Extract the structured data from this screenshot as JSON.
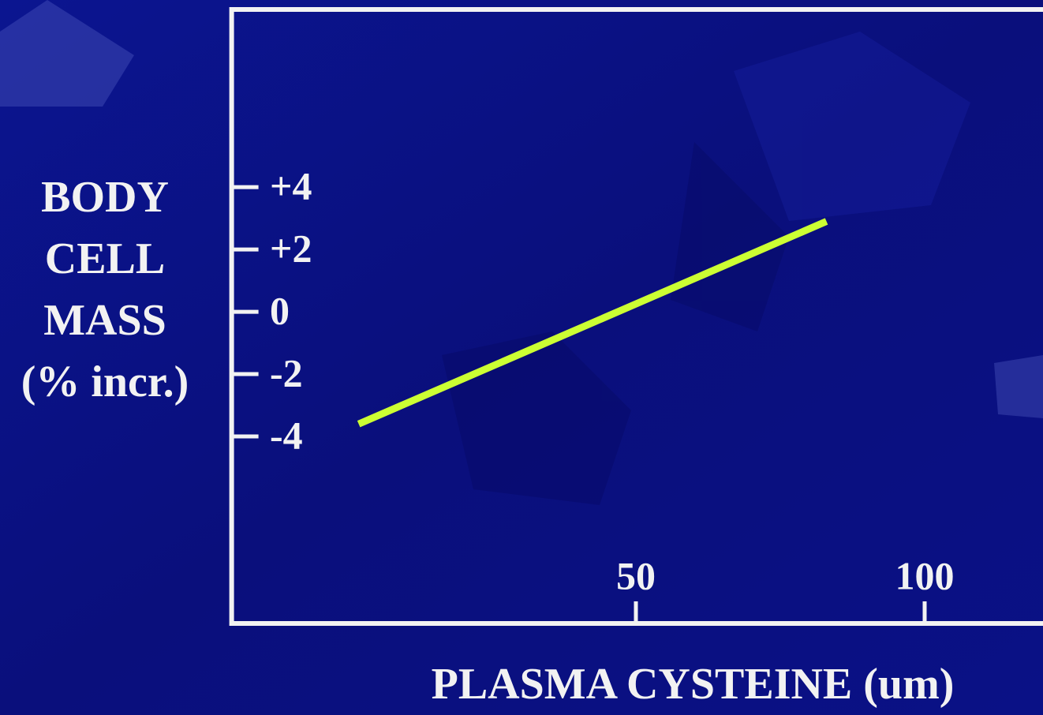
{
  "chart_data": {
    "type": "line",
    "x_label": "PLASMA CYSTEINE (um)",
    "y_label": [
      "BODY",
      "CELL",
      "MASS",
      "(% incr.)"
    ],
    "x": [
      2,
      83
    ],
    "series": [
      {
        "color": "#ccff33",
        "values": [
          -3.6,
          2.9
        ]
      }
    ],
    "xlim": [
      -20,
      120
    ],
    "xticks": [
      50,
      100
    ],
    "ylim": [
      -10,
      9.7
    ],
    "yticks": [
      {
        "value": 4,
        "label": "+4"
      },
      {
        "value": 2,
        "label": "+2"
      },
      0,
      -2,
      -4
    ]
  }
}
